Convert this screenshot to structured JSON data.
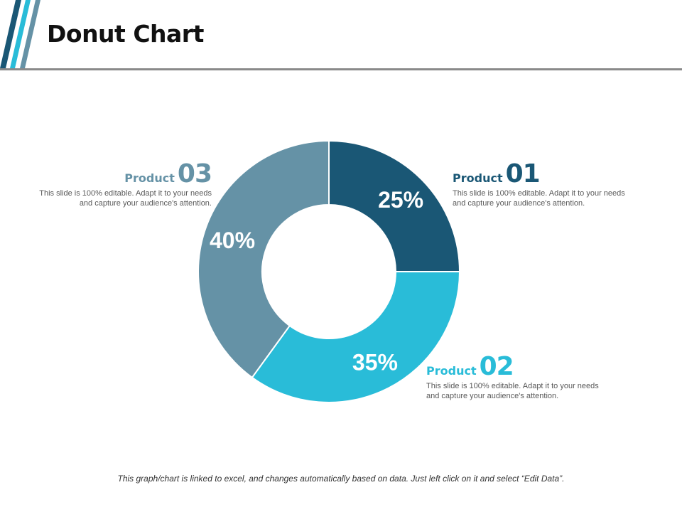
{
  "page": {
    "title": "Donut Chart",
    "footer_note": "This graph/chart is linked to excel, and changes automatically based on data. Just left click on it and select “Edit Data”."
  },
  "colors": {
    "product_01": "#1a5775",
    "product_02": "#29bcd8",
    "product_03": "#6592a6",
    "decor_dark": "#1a5775",
    "decor_cyan": "#29bcd8",
    "decor_gray": "#6592a6"
  },
  "chart_data": {
    "type": "pie",
    "style": "donut",
    "categories": [
      "Product 01",
      "Product 02",
      "Product 03"
    ],
    "values": [
      25,
      35,
      40
    ],
    "labels": [
      "25%",
      "35%",
      "40%"
    ],
    "start_angle_deg": 0,
    "direction": "clockwise",
    "legend": "none"
  },
  "callouts": [
    {
      "word": "Product",
      "number": "01",
      "description": "This slide is 100% editable. Adapt it to your needs and capture your audience's attention."
    },
    {
      "word": "Product",
      "number": "02",
      "description": "This slide is 100% editable. Adapt it to your needs and capture your audience's attention."
    },
    {
      "word": "Product",
      "number": "03",
      "description": "This slide is 100% editable. Adapt it to your needs and capture your audience's attention."
    }
  ]
}
